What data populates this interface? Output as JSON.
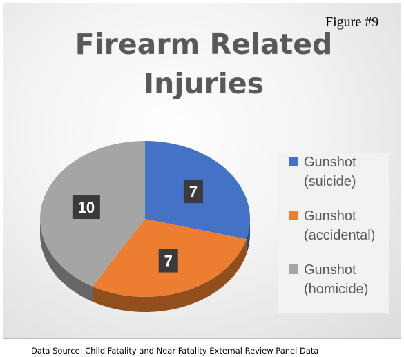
{
  "figure_label": "Figure #9",
  "source_note": "Data Source: Child Fatality and Near Fatality External Review Panel Data",
  "chart_data": {
    "type": "pie",
    "title": [
      "Firearm Related",
      "Injuries"
    ],
    "categories": [
      "Gunshot (suicide)",
      "Gunshot (accidental)",
      "Gunshot (homicide)"
    ],
    "values": [
      7,
      7,
      10
    ],
    "colors": [
      "#4472c4",
      "#ed7d31",
      "#a5a5a5"
    ],
    "legend": [
      {
        "lines": [
          "Gunshot",
          "(suicide)"
        ],
        "color": "#4472c4"
      },
      {
        "lines": [
          "Gunshot",
          "(accidental)"
        ],
        "color": "#ed7d31"
      },
      {
        "lines": [
          "Gunshot",
          "(homicide)"
        ],
        "color": "#a5a5a5"
      }
    ],
    "legend_position": "right",
    "style": "3d",
    "data_labels": true
  }
}
